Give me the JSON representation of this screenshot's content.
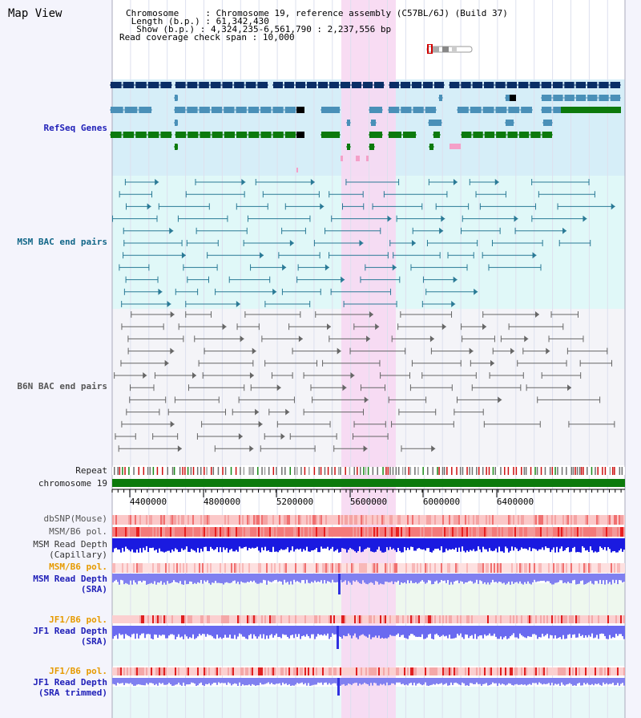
{
  "page_title": "Map View",
  "info": {
    "chromosome_label": "Chromosome",
    "chromosome_value": "Chromosome 19, reference assembly (C57BL/6J) (Build 37)",
    "length_label": "Length (b.p.)",
    "length_value": "61,342,430",
    "show_label": "Show (b.p.)",
    "show_value": "4,324,235-6,561,790 : 2,237,556 bp",
    "coverage_label": "Read coverage check span",
    "coverage_value": "10,000"
  },
  "tracks": {
    "refseq": "RefSeq Genes",
    "msm_bac": "MSM BAC end pairs",
    "b6n_bac": "B6N BAC end pairs",
    "repeat": "Repeat",
    "chromosome": "chromosome 19",
    "dbsnp": "dbSNP(Mouse)",
    "msm_b6_pol_1": "MSM/B6 pol.",
    "msm_depth_cap_1": "MSM Read Depth",
    "msm_depth_cap_2": "(Capillary)",
    "msm_b6_pol_2": "MSM/B6 pol.",
    "msm_depth_sra_1": "MSM Read Depth",
    "msm_depth_sra_2": "(SRA)",
    "jf1_b6_pol_1": "JF1/B6 pol.",
    "jf1_depth_sra_1": "JF1 Read Depth",
    "jf1_depth_sra_2": "(SRA)",
    "jf1_b6_pol_2": "JF1/B6 pol.",
    "jf1_depth_trim_1": "JF1 Read Depth",
    "jf1_depth_trim_2": "(SRA trimmed)"
  },
  "axis": {
    "ticks": [
      "4400000",
      "4800000",
      "5200000",
      "5600000",
      "6000000",
      "6400000"
    ]
  },
  "colors": {
    "highlight": "#f7d8f2",
    "refseq_bg": "#d6eef8",
    "msm_bg": "#e0f8f8",
    "b6n_bg": "#f4f4f8",
    "gene_navy": "#0a2e66",
    "gene_blue": "#4a90b8",
    "gene_green": "#0c7a0c",
    "msm_pair": "#2a7a96",
    "b6n_pair": "#666666",
    "chromosome_bar": "#0c7a0c",
    "depth_blue": "#1a1ae0",
    "depth_light": "#8080f0"
  }
}
